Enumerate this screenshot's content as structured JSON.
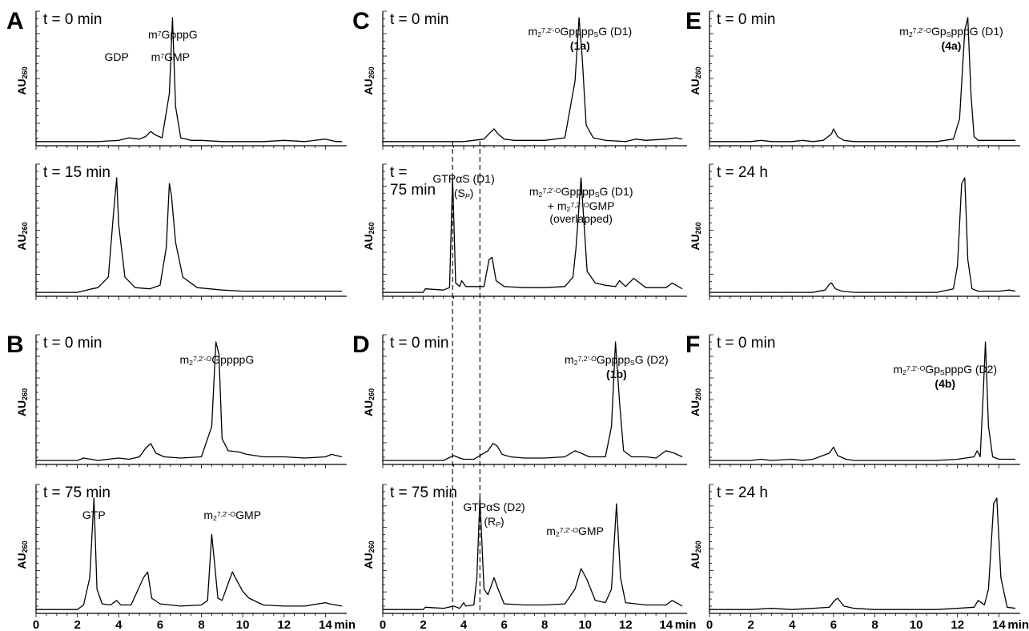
{
  "figure": {
    "axis_unit": "min",
    "y_label_main": "AU",
    "y_label_sub": "260",
    "x_ticks": [
      "0",
      "2",
      "4",
      "6",
      "8",
      "10",
      "12",
      "14"
    ]
  },
  "chart_data": [
    {
      "type": "line",
      "panel_letter": "A",
      "time_label": "t = 0 min",
      "xlim": [
        0,
        14.8
      ],
      "ylabel": "AU260",
      "xlabel": "min",
      "x": [
        0,
        2,
        3,
        4,
        4.5,
        5,
        5.3,
        5.55,
        5.8,
        6.1,
        6.45,
        6.6,
        6.75,
        7.0,
        7.5,
        8,
        9,
        10,
        11,
        12,
        13,
        14,
        14.5,
        14.8
      ],
      "y": [
        0.02,
        0.02,
        0.02,
        0.03,
        0.05,
        0.04,
        0.06,
        0.1,
        0.07,
        0.05,
        0.4,
        1.0,
        0.3,
        0.05,
        0.03,
        0.03,
        0.02,
        0.02,
        0.02,
        0.03,
        0.02,
        0.04,
        0.02,
        0.02
      ],
      "annotations": [
        {
          "parts": [
            [
              "m",
              ""
            ],
            [
              "7",
              "sup"
            ],
            [
              "GpppG",
              ""
            ]
          ],
          "x": 6.62
        }
      ]
    },
    {
      "type": "line",
      "panel_letter": "",
      "time_label": "t = 15 min",
      "xlim": [
        0,
        14.8
      ],
      "ylabel": "AU260",
      "xlabel": "min",
      "x": [
        0,
        2,
        2.7,
        3,
        3.5,
        3.75,
        3.9,
        4.0,
        4.3,
        4.8,
        5.5,
        6,
        6.3,
        6.45,
        6.55,
        6.75,
        7.1,
        7.8,
        9,
        10,
        12,
        14,
        14.8
      ],
      "y": [
        0.02,
        0.02,
        0.05,
        0.06,
        0.15,
        0.7,
        1.0,
        0.6,
        0.15,
        0.06,
        0.05,
        0.08,
        0.4,
        0.95,
        0.85,
        0.45,
        0.15,
        0.06,
        0.04,
        0.03,
        0.03,
        0.03,
        0.03
      ],
      "annotations": [
        {
          "parts": [
            [
              "GDP",
              ""
            ]
          ],
          "x": 3.9
        },
        {
          "parts": [
            [
              "m",
              ""
            ],
            [
              "7",
              "sup"
            ],
            [
              "GMP",
              ""
            ]
          ],
          "x": 6.5
        }
      ]
    },
    {
      "type": "line",
      "panel_letter": "B",
      "time_label": "t = 0 min",
      "xlim": [
        0,
        14.8
      ],
      "ylabel": "AU260",
      "xlabel": "min",
      "x": [
        0,
        2,
        2.3,
        3,
        4,
        4.5,
        5,
        5.3,
        5.55,
        5.8,
        6.2,
        7,
        8,
        8.5,
        8.7,
        8.85,
        9.0,
        9.3,
        9.8,
        10.2,
        11,
        12,
        13,
        14,
        14.3,
        14.8
      ],
      "y": [
        0.02,
        0.02,
        0.04,
        0.02,
        0.04,
        0.03,
        0.05,
        0.12,
        0.16,
        0.08,
        0.05,
        0.04,
        0.05,
        0.3,
        1.0,
        0.9,
        0.2,
        0.1,
        0.09,
        0.07,
        0.05,
        0.05,
        0.04,
        0.05,
        0.07,
        0.05
      ],
      "annotations": [
        {
          "parts": [
            [
              "m",
              ""
            ],
            [
              "2",
              "sub"
            ],
            [
              "7,2′-O",
              "sup"
            ],
            [
              "GppppG",
              ""
            ]
          ],
          "x": 8.75
        }
      ]
    },
    {
      "type": "line",
      "panel_letter": "",
      "time_label": "t = 75 min",
      "xlim": [
        0,
        14.8
      ],
      "ylabel": "AU260",
      "xlabel": "min",
      "x": [
        0,
        2,
        2.3,
        2.6,
        2.8,
        2.95,
        3.2,
        3.6,
        3.9,
        4.1,
        4.6,
        5.2,
        5.4,
        5.6,
        6,
        7,
        8,
        8.3,
        8.5,
        8.65,
        8.8,
        9,
        9.3,
        9.5,
        9.7,
        10,
        10.3,
        11,
        12,
        13,
        14,
        14.2,
        14.8
      ],
      "y": [
        0.02,
        0.02,
        0.06,
        0.3,
        1.0,
        0.2,
        0.07,
        0.06,
        0.1,
        0.06,
        0.06,
        0.3,
        0.35,
        0.12,
        0.07,
        0.05,
        0.06,
        0.1,
        0.68,
        0.4,
        0.12,
        0.1,
        0.25,
        0.35,
        0.28,
        0.18,
        0.12,
        0.06,
        0.05,
        0.05,
        0.08,
        0.07,
        0.05
      ],
      "annotations": [
        {
          "parts": [
            [
              "GTP",
              ""
            ]
          ],
          "x": 2.8
        },
        {
          "parts": [
            [
              "m",
              ""
            ],
            [
              "2",
              "sub"
            ],
            [
              "7,2′-O",
              "sup"
            ],
            [
              "GMP",
              ""
            ]
          ],
          "x": 9.5
        }
      ]
    },
    {
      "type": "line",
      "panel_letter": "C",
      "time_label": "t = 0 min",
      "xlim": [
        0,
        14.8
      ],
      "ylabel": "AU260",
      "xlabel": "min",
      "x": [
        0,
        2,
        3,
        4,
        5,
        5.3,
        5.5,
        5.7,
        6,
        6.5,
        8,
        9,
        9.5,
        9.7,
        9.85,
        10.05,
        10.4,
        11,
        12,
        12.5,
        13,
        14,
        14.5,
        14.8
      ],
      "y": [
        0.02,
        0.02,
        0.02,
        0.02,
        0.04,
        0.09,
        0.12,
        0.08,
        0.04,
        0.03,
        0.03,
        0.05,
        0.5,
        1.0,
        0.7,
        0.15,
        0.05,
        0.03,
        0.02,
        0.04,
        0.03,
        0.04,
        0.05,
        0.04
      ],
      "annotations": [
        {
          "parts": [
            [
              "m",
              ""
            ],
            [
              "2",
              "sub"
            ],
            [
              "7,2′-O",
              "sup"
            ],
            [
              "Gpppp",
              ""
            ],
            [
              "S",
              "sub"
            ],
            [
              "G (D1)",
              ""
            ]
          ],
          "x": 9.75
        },
        {
          "parts": [
            [
              "(1a)",
              "bold"
            ]
          ],
          "x": 9.75
        }
      ]
    },
    {
      "type": "line",
      "panel_letter": "",
      "time_label_lines": [
        "t =",
        "75 min"
      ],
      "xlim": [
        0,
        14.8
      ],
      "ylabel": "AU260",
      "xlabel": "min",
      "x": [
        0,
        2,
        2.1,
        3,
        3.3,
        3.45,
        3.6,
        3.8,
        3.9,
        4.1,
        5,
        5.25,
        5.4,
        5.6,
        6,
        7,
        8,
        9,
        9.4,
        9.55,
        9.8,
        10.1,
        10.5,
        11,
        11.5,
        11.7,
        12,
        12.4,
        13,
        14,
        14.3,
        14.8
      ],
      "y": [
        0.02,
        0.02,
        0.05,
        0.04,
        0.06,
        1.0,
        0.1,
        0.07,
        0.12,
        0.07,
        0.07,
        0.3,
        0.32,
        0.12,
        0.07,
        0.06,
        0.06,
        0.07,
        0.15,
        0.4,
        1.0,
        0.2,
        0.1,
        0.08,
        0.07,
        0.12,
        0.07,
        0.14,
        0.06,
        0.06,
        0.1,
        0.05
      ],
      "annotations": [
        {
          "parts": [
            [
              "GTP",
              ""
            ],
            [
              "α",
              "sym"
            ],
            [
              "S (D1)",
              ""
            ]
          ],
          "x": 4.0
        },
        {
          "parts": [
            [
              "(S",
              ""
            ],
            [
              "P",
              "subital"
            ],
            [
              ")",
              ""
            ]
          ],
          "x": 4.0
        },
        {
          "parts": [
            [
              "m",
              ""
            ],
            [
              "2",
              "sub"
            ],
            [
              "7,2′-O",
              "sup"
            ],
            [
              "Gpppp",
              ""
            ],
            [
              "S",
              "sub"
            ],
            [
              "G (D1)",
              ""
            ]
          ],
          "x": 9.8
        },
        {
          "parts": [
            [
              "+ m",
              ""
            ],
            [
              "2",
              "sub"
            ],
            [
              "7,2′-O",
              "sup"
            ],
            [
              "GMP",
              ""
            ]
          ],
          "x": 9.8
        },
        {
          "parts": [
            [
              "(overlapped)",
              ""
            ]
          ],
          "x": 9.8
        }
      ]
    },
    {
      "type": "line",
      "panel_letter": "D",
      "time_label": "t = 0 min",
      "xlim": [
        0,
        14.8
      ],
      "ylabel": "AU260",
      "xlabel": "min",
      "x": [
        0,
        2,
        3,
        3.5,
        3.8,
        4,
        4.5,
        4.8,
        5.2,
        5.45,
        5.65,
        5.9,
        6.3,
        7,
        8,
        9,
        9.5,
        9.8,
        10.2,
        11,
        11.3,
        11.5,
        11.7,
        11.9,
        12.3,
        13,
        13.5,
        14,
        14.4,
        14.8
      ],
      "y": [
        0.02,
        0.02,
        0.02,
        0.06,
        0.04,
        0.03,
        0.03,
        0.06,
        0.1,
        0.16,
        0.14,
        0.07,
        0.05,
        0.04,
        0.04,
        0.05,
        0.1,
        0.08,
        0.05,
        0.05,
        0.3,
        1.0,
        0.5,
        0.1,
        0.05,
        0.05,
        0.04,
        0.1,
        0.08,
        0.05
      ],
      "annotations": [
        {
          "parts": [
            [
              "m",
              ""
            ],
            [
              "2",
              "sub"
            ],
            [
              "7,2′-O",
              "sup"
            ],
            [
              "Gpppp",
              ""
            ],
            [
              "S",
              "sub"
            ],
            [
              "G (D2)",
              ""
            ]
          ],
          "x": 11.55
        },
        {
          "parts": [
            [
              "(1b)",
              "bold"
            ]
          ],
          "x": 11.55
        }
      ]
    },
    {
      "type": "line",
      "panel_letter": "",
      "time_label": "t = 75 min",
      "xlim": [
        0,
        14.8
      ],
      "ylabel": "AU260",
      "xlabel": "min",
      "x": [
        0,
        2,
        2.1,
        3,
        3.5,
        3.8,
        4,
        4.1,
        4.5,
        4.65,
        4.8,
        5,
        5.2,
        5.5,
        5.7,
        6,
        7,
        8,
        9,
        9.5,
        9.8,
        10.1,
        10.5,
        11,
        11.3,
        11.55,
        11.75,
        12,
        13,
        14,
        14.3,
        14.8
      ],
      "y": [
        0.02,
        0.02,
        0.04,
        0.03,
        0.05,
        0.03,
        0.08,
        0.05,
        0.06,
        0.3,
        1.0,
        0.2,
        0.15,
        0.3,
        0.2,
        0.07,
        0.06,
        0.06,
        0.07,
        0.2,
        0.38,
        0.28,
        0.1,
        0.08,
        0.2,
        0.95,
        0.3,
        0.08,
        0.06,
        0.06,
        0.1,
        0.05
      ],
      "annotations": [
        {
          "parts": [
            [
              "GTP",
              ""
            ],
            [
              "α",
              "sym"
            ],
            [
              "S (D2)",
              ""
            ]
          ],
          "x": 5.5
        },
        {
          "parts": [
            [
              "(R",
              ""
            ],
            [
              "P",
              "subital"
            ],
            [
              ")",
              ""
            ]
          ],
          "x": 5.5
        },
        {
          "parts": [
            [
              "m",
              ""
            ],
            [
              "2",
              "sub"
            ],
            [
              "7,2′-O",
              "sup"
            ],
            [
              "GMP",
              ""
            ]
          ],
          "x": 9.5
        }
      ]
    },
    {
      "type": "line",
      "panel_letter": "E",
      "time_label": "t = 0 min",
      "xlim": [
        0,
        14.8
      ],
      "ylabel": "AU260",
      "xlabel": "min",
      "x": [
        0,
        2,
        2.5,
        3,
        4,
        4.5,
        5,
        5.5,
        5.9,
        6.0,
        6.2,
        6.5,
        7,
        8,
        9,
        10,
        11,
        11.8,
        12.1,
        12.35,
        12.5,
        12.65,
        12.8,
        13,
        14,
        14.8
      ],
      "y": [
        0.02,
        0.02,
        0.03,
        0.02,
        0.02,
        0.03,
        0.02,
        0.03,
        0.08,
        0.12,
        0.06,
        0.03,
        0.02,
        0.02,
        0.02,
        0.02,
        0.02,
        0.04,
        0.2,
        0.9,
        1.0,
        0.4,
        0.06,
        0.03,
        0.03,
        0.03
      ],
      "annotations": [
        {
          "parts": [
            [
              "m",
              ""
            ],
            [
              "2",
              "sub"
            ],
            [
              "7,2′-O",
              "sup"
            ],
            [
              "Gp",
              ""
            ],
            [
              "S",
              "sub"
            ],
            [
              "pppG (D1)",
              ""
            ]
          ],
          "x": 11.7
        },
        {
          "parts": [
            [
              "(4a)",
              "bold"
            ]
          ],
          "x": 11.7
        }
      ]
    },
    {
      "type": "line",
      "panel_letter": "",
      "time_label": "t = 24 h",
      "xlim": [
        0,
        14.8
      ],
      "ylabel": "AU260",
      "xlabel": "min",
      "x": [
        0,
        2,
        3,
        4,
        5,
        5.6,
        5.8,
        5.9,
        6.1,
        6.4,
        7,
        8,
        9,
        10,
        11,
        11.8,
        12.0,
        12.2,
        12.35,
        12.5,
        12.7,
        13,
        14,
        14.5,
        14.8
      ],
      "y": [
        0.02,
        0.02,
        0.02,
        0.02,
        0.02,
        0.04,
        0.09,
        0.1,
        0.05,
        0.03,
        0.02,
        0.02,
        0.02,
        0.02,
        0.02,
        0.05,
        0.25,
        0.95,
        1.0,
        0.3,
        0.05,
        0.03,
        0.03,
        0.04,
        0.03
      ],
      "annotations": []
    },
    {
      "type": "line",
      "panel_letter": "F",
      "time_label": "t = 0 min",
      "xlim": [
        0,
        14.8
      ],
      "ylabel": "AU260",
      "xlabel": "min",
      "x": [
        0,
        2,
        2.5,
        3,
        4,
        4.5,
        5,
        5.8,
        6.0,
        6.2,
        6.6,
        7,
        8,
        9,
        10,
        11,
        12,
        12.8,
        12.95,
        13.1,
        13.25,
        13.35,
        13.5,
        13.7,
        14,
        14.8
      ],
      "y": [
        0.02,
        0.02,
        0.03,
        0.02,
        0.03,
        0.02,
        0.03,
        0.08,
        0.13,
        0.06,
        0.03,
        0.02,
        0.02,
        0.02,
        0.02,
        0.02,
        0.03,
        0.05,
        0.1,
        0.05,
        0.6,
        1.0,
        0.3,
        0.05,
        0.03,
        0.03
      ],
      "annotations": [
        {
          "parts": [
            [
              "m",
              ""
            ],
            [
              "2",
              "sub"
            ],
            [
              "7,2′-O",
              "sup"
            ],
            [
              "Gp",
              ""
            ],
            [
              "S",
              "sub"
            ],
            [
              "pppG (D2)",
              ""
            ]
          ],
          "x": 11.4
        },
        {
          "parts": [
            [
              "(4b)",
              "bold"
            ]
          ],
          "x": 11.4
        }
      ]
    },
    {
      "type": "line",
      "panel_letter": "",
      "time_label": "t = 24 h",
      "xlim": [
        0,
        14.8
      ],
      "ylabel": "AU260",
      "xlabel": "min",
      "x": [
        0,
        2,
        3,
        4,
        5,
        5.8,
        6.05,
        6.2,
        6.5,
        7,
        8,
        9,
        10,
        11,
        12,
        12.8,
        13.0,
        13.3,
        13.5,
        13.75,
        13.9,
        14.1,
        14.4,
        14.8
      ],
      "y": [
        0.02,
        0.02,
        0.03,
        0.02,
        0.03,
        0.04,
        0.1,
        0.12,
        0.05,
        0.03,
        0.02,
        0.02,
        0.02,
        0.02,
        0.03,
        0.04,
        0.1,
        0.06,
        0.2,
        0.95,
        1.0,
        0.3,
        0.04,
        0.03
      ],
      "annotations": []
    }
  ]
}
